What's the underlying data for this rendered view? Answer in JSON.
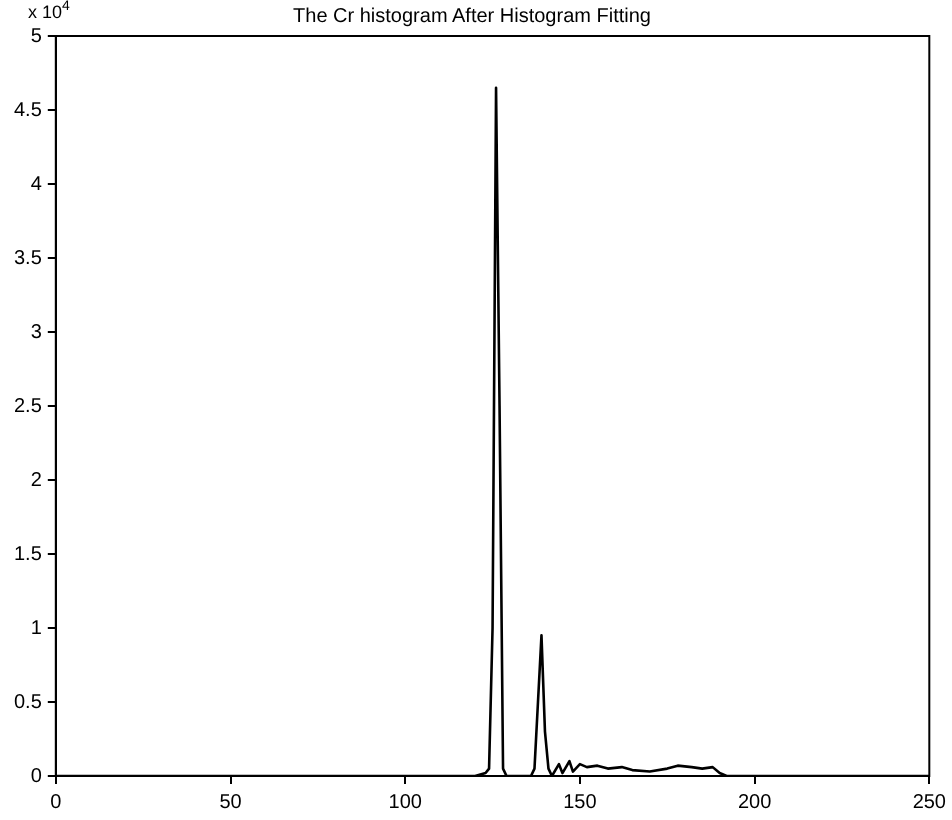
{
  "chart_data": {
    "type": "line",
    "title": "The Cr histogram After Histogram Fitting",
    "annotations": [
      "x 10$^{4}$"
    ],
    "x": [
      0,
      120,
      123,
      124,
      125,
      126,
      127,
      128,
      129,
      136,
      137,
      138,
      139,
      140,
      141,
      142,
      144,
      145,
      147,
      148,
      150,
      152,
      155,
      158,
      162,
      165,
      170,
      175,
      178,
      182,
      185,
      188,
      190,
      192,
      250
    ],
    "series": [
      {
        "color": "#000000",
        "values": [
          0,
          0,
          0.02,
          0.05,
          1.0,
          4.65,
          2.5,
          0.05,
          0,
          0,
          0.05,
          0.5,
          0.95,
          0.3,
          0.05,
          0,
          0.08,
          0.02,
          0.1,
          0.03,
          0.08,
          0.06,
          0.07,
          0.05,
          0.06,
          0.04,
          0.03,
          0.05,
          0.07,
          0.06,
          0.05,
          0.06,
          0.02,
          0,
          0
        ]
      }
    ],
    "xlim": [
      0,
      250
    ],
    "xticks": [
      0,
      50,
      100,
      150,
      200,
      250
    ],
    "ylim": [
      0,
      5
    ],
    "yticks": [
      0,
      0.5,
      1,
      1.5,
      2,
      2.5,
      3,
      3.5,
      4,
      4.5,
      5
    ],
    "grid": false,
    "legend": false,
    "marker": "none",
    "line_style": "solid"
  }
}
